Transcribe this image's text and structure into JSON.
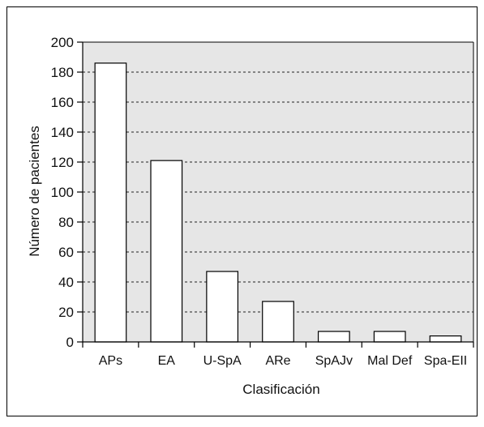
{
  "chart_data": {
    "type": "bar",
    "title": "",
    "xlabel": "Clasificación",
    "ylabel": "Número de pacientes",
    "categories": [
      "APs",
      "EA",
      "U-SpA",
      "ARe",
      "SpAJv",
      "Mal Def",
      "Spa-EII"
    ],
    "values": [
      186,
      121,
      47,
      27,
      7,
      7,
      4
    ],
    "ylim": [
      0,
      200
    ],
    "yticks": [
      0,
      20,
      40,
      60,
      80,
      100,
      120,
      140,
      160,
      180,
      200
    ],
    "grid": true,
    "grid_style": "dashed horizontal",
    "legend": "none",
    "colors": {
      "plot_background": "#e6e6e6",
      "bar_fill": "#ffffff",
      "bar_stroke": "#000000",
      "grid": "#222222",
      "outer_border": "#000000"
    }
  }
}
